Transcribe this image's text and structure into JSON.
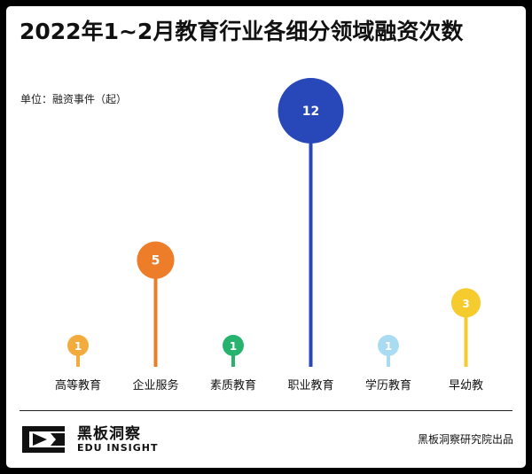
{
  "header": {
    "title": "2022年1~2月教育行业各细分领域融资次数",
    "unit": "单位：融资事件（起）"
  },
  "chart_data": {
    "type": "lollipop",
    "title": "2022年1~2月教育行业各细分领域融资次数",
    "ylabel": "单位：融资事件（起）",
    "categories": [
      "高等教育",
      "企业服务",
      "素质教育",
      "职业教育",
      "学历教育",
      "早幼教"
    ],
    "values": [
      1,
      5,
      1,
      12,
      1,
      3
    ],
    "colors": [
      "#F2AB3C",
      "#EE7D2A",
      "#27B26D",
      "#2847B8",
      "#A9DCF2",
      "#F5CB2E"
    ],
    "ylim": [
      0,
      12
    ],
    "grid": false,
    "legend": "none"
  },
  "footer": {
    "brand_cn": "黑板洞察",
    "brand_en": "EDU INSIGHT",
    "publisher": "黑板洞察研究院出品"
  }
}
